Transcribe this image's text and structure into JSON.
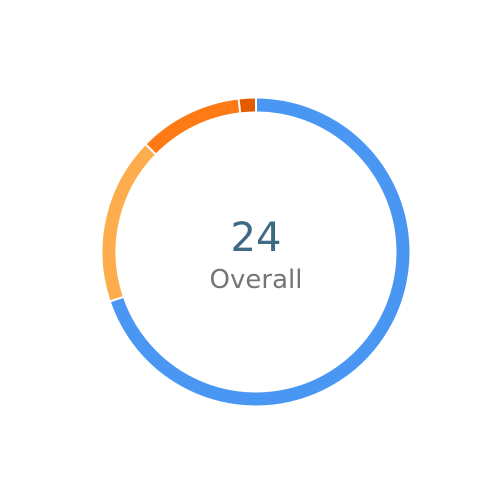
{
  "center": {
    "value": "24",
    "label": "Overall"
  },
  "chart_data": {
    "type": "pie",
    "variant": "donut",
    "start": "top",
    "direction": "clockwise",
    "slices": [
      {
        "value": 0.698,
        "color": "#4a97f3"
      },
      {
        "value": 0.175,
        "color": "#fdad4e"
      },
      {
        "value": 0.109,
        "color": "#fe7a15"
      },
      {
        "value": 0.018,
        "color": "#e35b00"
      }
    ],
    "separator_color": "#ffffff"
  }
}
